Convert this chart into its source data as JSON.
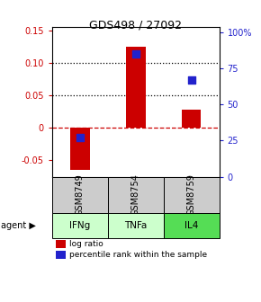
{
  "title": "GDS498 / 27092",
  "samples": [
    "GSM8749",
    "GSM8754",
    "GSM8759"
  ],
  "agents": [
    "IFNg",
    "TNFa",
    "IL4"
  ],
  "log_ratios": [
    -0.065,
    0.125,
    0.028
  ],
  "percentile_ranks": [
    27,
    85,
    67
  ],
  "bar_color": "#cc0000",
  "dot_color": "#2222cc",
  "ylim_left": [
    -0.075,
    0.155
  ],
  "ylim_right": [
    0,
    103.3
  ],
  "yticks_left": [
    -0.05,
    0.0,
    0.05,
    0.1,
    0.15
  ],
  "yticks_right": [
    0,
    25,
    50,
    75,
    100
  ],
  "ytick_labels_left": [
    "-0.05",
    "0",
    "0.05",
    "0.10",
    "0.15"
  ],
  "ytick_labels_right": [
    "0",
    "25",
    "50",
    "75",
    "100%"
  ],
  "grid_values": [
    0.05,
    0.1
  ],
  "zero_line_color": "#cc0000",
  "sample_bg_color": "#cccccc",
  "agent_colors": [
    "#ccffcc",
    "#ccffcc",
    "#55dd55"
  ],
  "bar_width": 0.35,
  "dot_size": 40,
  "legend_red_label": "log ratio",
  "legend_blue_label": "percentile rank within the sample",
  "title_fontsize": 9,
  "tick_fontsize": 7,
  "label_fontsize": 7,
  "agent_fontsize": 7.5
}
